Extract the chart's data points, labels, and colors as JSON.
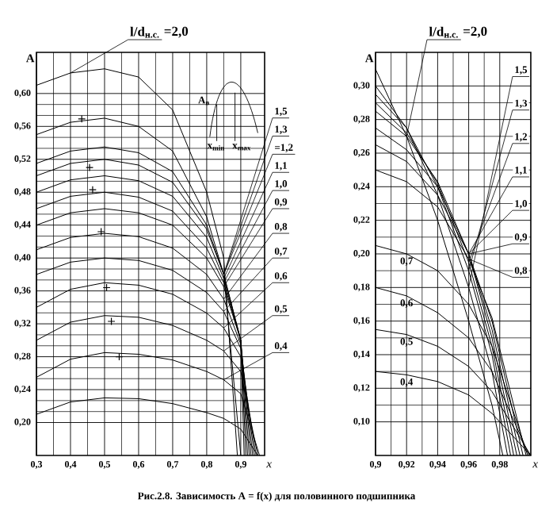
{
  "chart_data": [
    {
      "type": "line",
      "xlabel": "x",
      "ylabel": "A",
      "legend_title": "l/d$_{н.с.}$",
      "xlim": [
        0.3,
        0.97
      ],
      "ylim": [
        0.16,
        0.65
      ],
      "xticks": [
        {
          "value": 0.3,
          "label": "0,3"
        },
        {
          "value": 0.4,
          "label": "0,4"
        },
        {
          "value": 0.5,
          "label": "0,5"
        },
        {
          "value": 0.6,
          "label": "0,6"
        },
        {
          "value": 0.7,
          "label": "0,7"
        },
        {
          "value": 0.8,
          "label": "0,8"
        },
        {
          "value": 0.9,
          "label": "0,9"
        }
      ],
      "yticks": [
        {
          "value": 0.2,
          "label": "0,20"
        },
        {
          "value": 0.24,
          "label": "0,24"
        },
        {
          "value": 0.28,
          "label": "0,28"
        },
        {
          "value": 0.32,
          "label": "0,32"
        },
        {
          "value": 0.36,
          "label": "0,36"
        },
        {
          "value": 0.4,
          "label": "0,40"
        },
        {
          "value": 0.44,
          "label": "0,44"
        },
        {
          "value": 0.48,
          "label": "0,48"
        },
        {
          "value": 0.52,
          "label": "0,52"
        },
        {
          "value": 0.56,
          "label": "0,56"
        },
        {
          "value": 0.6,
          "label": "0,60"
        }
      ],
      "grid": true,
      "annotations": [
        "A$_{в}$",
        "x$_{min}$",
        "x$_{max}$"
      ],
      "series": [
        {
          "name": "=2,0",
          "color": "#000000",
          "x": [
            0.3,
            0.4,
            0.5,
            0.6,
            0.7,
            0.8,
            0.85,
            0.89
          ],
          "values": [
            0.61,
            0.625,
            0.63,
            0.62,
            0.58,
            0.48,
            0.4,
            0.16
          ]
        },
        {
          "name": "1,5",
          "color": "#000000",
          "x": [
            0.3,
            0.4,
            0.5,
            0.6,
            0.7,
            0.8,
            0.85,
            0.9
          ],
          "values": [
            0.55,
            0.565,
            0.57,
            0.56,
            0.53,
            0.45,
            0.38,
            0.16
          ]
        },
        {
          "name": "1,3",
          "color": "#000000",
          "x": [
            0.3,
            0.4,
            0.5,
            0.6,
            0.7,
            0.8,
            0.85,
            0.9,
            0.91
          ],
          "values": [
            0.515,
            0.53,
            0.535,
            0.528,
            0.505,
            0.44,
            0.38,
            0.3,
            0.16
          ]
        },
        {
          "name": "=1,2",
          "color": "#000000",
          "x": [
            0.3,
            0.4,
            0.5,
            0.6,
            0.7,
            0.8,
            0.85,
            0.9,
            0.915
          ],
          "values": [
            0.5,
            0.515,
            0.52,
            0.513,
            0.492,
            0.435,
            0.38,
            0.3,
            0.16
          ]
        },
        {
          "name": "1,1",
          "color": "#000000",
          "x": [
            0.3,
            0.4,
            0.5,
            0.6,
            0.7,
            0.8,
            0.85,
            0.9,
            0.92
          ],
          "values": [
            0.48,
            0.495,
            0.5,
            0.494,
            0.475,
            0.425,
            0.375,
            0.3,
            0.16
          ]
        },
        {
          "name": "1,0",
          "color": "#000000",
          "x": [
            0.3,
            0.4,
            0.5,
            0.6,
            0.7,
            0.8,
            0.85,
            0.9,
            0.925
          ],
          "values": [
            0.46,
            0.475,
            0.48,
            0.474,
            0.457,
            0.412,
            0.37,
            0.3,
            0.16
          ]
        },
        {
          "name": "0,9",
          "color": "#000000",
          "x": [
            0.3,
            0.4,
            0.5,
            0.6,
            0.7,
            0.8,
            0.85,
            0.9,
            0.93
          ],
          "values": [
            0.44,
            0.455,
            0.46,
            0.455,
            0.44,
            0.4,
            0.365,
            0.3,
            0.16
          ]
        },
        {
          "name": "0,8",
          "color": "#000000",
          "x": [
            0.3,
            0.4,
            0.5,
            0.6,
            0.7,
            0.8,
            0.85,
            0.9,
            0.935
          ],
          "values": [
            0.41,
            0.425,
            0.43,
            0.426,
            0.412,
            0.38,
            0.35,
            0.295,
            0.16
          ]
        },
        {
          "name": "0,7",
          "color": "#000000",
          "x": [
            0.3,
            0.4,
            0.5,
            0.6,
            0.7,
            0.8,
            0.85,
            0.9,
            0.94
          ],
          "values": [
            0.38,
            0.395,
            0.4,
            0.397,
            0.385,
            0.358,
            0.335,
            0.29,
            0.16
          ]
        },
        {
          "name": "0,6",
          "color": "#000000",
          "x": [
            0.3,
            0.4,
            0.5,
            0.6,
            0.7,
            0.8,
            0.85,
            0.9,
            0.945
          ],
          "values": [
            0.34,
            0.362,
            0.37,
            0.367,
            0.356,
            0.333,
            0.315,
            0.28,
            0.16
          ]
        },
        {
          "name": "0,5",
          "color": "#000000",
          "x": [
            0.3,
            0.4,
            0.5,
            0.6,
            0.7,
            0.8,
            0.85,
            0.9,
            0.95
          ],
          "values": [
            0.3,
            0.322,
            0.33,
            0.328,
            0.318,
            0.3,
            0.287,
            0.262,
            0.16
          ]
        },
        {
          "name": "0,4",
          "color": "#000000",
          "x": [
            0.3,
            0.4,
            0.5,
            0.6,
            0.7,
            0.8,
            0.85,
            0.9,
            0.955
          ],
          "values": [
            0.255,
            0.277,
            0.285,
            0.283,
            0.276,
            0.262,
            0.252,
            0.235,
            0.16
          ]
        },
        {
          "color": "#000000",
          "x": [
            0.3,
            0.4,
            0.5,
            0.6,
            0.7,
            0.8,
            0.85,
            0.9,
            0.95
          ],
          "values": [
            0.21,
            0.225,
            0.23,
            0.229,
            0.223,
            0.212,
            0.205,
            0.192,
            0.16
          ]
        },
        {
          "type": "scatter",
          "marker": "cross",
          "color": "#000000",
          "x": [
            0.433,
            0.456,
            0.465,
            0.49,
            0.506,
            0.52,
            0.543
          ],
          "values": [
            0.569,
            0.51,
            0.483,
            0.432,
            0.364,
            0.323,
            0.28
          ]
        }
      ]
    },
    {
      "type": "line",
      "xlabel": "x",
      "ylabel": "A",
      "legend_title": "l/d$_{н.с.}$",
      "xlim": [
        0.9,
        1.0
      ],
      "ylim": [
        0.08,
        0.32
      ],
      "xticks": [
        {
          "value": 0.9,
          "label": "0,9"
        },
        {
          "value": 0.92,
          "label": "0,92"
        },
        {
          "value": 0.94,
          "label": "0,94"
        },
        {
          "value": 0.96,
          "label": "0,96"
        },
        {
          "value": 0.98,
          "label": "0,98"
        }
      ],
      "yticks": [
        {
          "value": 0.1,
          "label": "0,10"
        },
        {
          "value": 0.12,
          "label": "0,12"
        },
        {
          "value": 0.14,
          "label": "0,14"
        },
        {
          "value": 0.16,
          "label": "0,16"
        },
        {
          "value": 0.18,
          "label": "0,18"
        },
        {
          "value": 0.2,
          "label": "0,20"
        },
        {
          "value": 0.22,
          "label": "0,22"
        },
        {
          "value": 0.24,
          "label": "0,24"
        },
        {
          "value": 0.26,
          "label": "0,26"
        },
        {
          "value": 0.28,
          "label": "0,28"
        },
        {
          "value": 0.3,
          "label": "0,30"
        }
      ],
      "grid": true,
      "annotations": [
        "Рис.2.8. Зависимость A = f(x) для половинного подшипника"
      ],
      "series": [
        {
          "name": "=2,0",
          "color": "#000000",
          "x": [
            0.9,
            0.92,
            0.94,
            0.96,
            0.975,
            0.982
          ],
          "values": [
            0.31,
            0.27,
            0.22,
            0.16,
            0.11,
            0.08
          ]
        },
        {
          "name": "1,5",
          "color": "#000000",
          "x": [
            0.9,
            0.92,
            0.94,
            0.96,
            0.975,
            0.985
          ],
          "values": [
            0.3,
            0.275,
            0.235,
            0.18,
            0.13,
            0.08
          ]
        },
        {
          "name": "1,3",
          "color": "#000000",
          "x": [
            0.9,
            0.92,
            0.94,
            0.96,
            0.975,
            0.987
          ],
          "values": [
            0.295,
            0.275,
            0.24,
            0.19,
            0.14,
            0.08
          ]
        },
        {
          "name": "1,2",
          "color": "#000000",
          "x": [
            0.9,
            0.92,
            0.94,
            0.96,
            0.975,
            0.989
          ],
          "values": [
            0.29,
            0.272,
            0.242,
            0.195,
            0.145,
            0.08
          ]
        },
        {
          "name": "1,1",
          "color": "#000000",
          "x": [
            0.9,
            0.92,
            0.94,
            0.96,
            0.975,
            0.991
          ],
          "values": [
            0.285,
            0.27,
            0.243,
            0.2,
            0.15,
            0.08
          ]
        },
        {
          "name": "1,0",
          "color": "#000000",
          "x": [
            0.9,
            0.92,
            0.94,
            0.96,
            0.975,
            0.993
          ],
          "values": [
            0.275,
            0.262,
            0.24,
            0.2,
            0.155,
            0.08
          ]
        },
        {
          "name": "0,9",
          "color": "#000000",
          "x": [
            0.9,
            0.92,
            0.94,
            0.96,
            0.975,
            0.995
          ],
          "values": [
            0.265,
            0.255,
            0.235,
            0.2,
            0.16,
            0.08
          ]
        },
        {
          "name": "0,8",
          "color": "#000000",
          "x": [
            0.9,
            0.92,
            0.94,
            0.96,
            0.975,
            0.997
          ],
          "values": [
            0.25,
            0.243,
            0.228,
            0.197,
            0.162,
            0.08
          ]
        },
        {
          "name": "0,7",
          "color": "#000000",
          "x": [
            0.9,
            0.92,
            0.94,
            0.96,
            0.975,
            0.998
          ],
          "values": [
            0.205,
            0.2,
            0.19,
            0.17,
            0.145,
            0.08
          ]
        },
        {
          "name": "0,6",
          "color": "#000000",
          "x": [
            0.9,
            0.92,
            0.94,
            0.96,
            0.975,
            0.999
          ],
          "values": [
            0.18,
            0.175,
            0.165,
            0.15,
            0.13,
            0.08
          ]
        },
        {
          "name": "0,5",
          "color": "#000000",
          "x": [
            0.9,
            0.92,
            0.94,
            0.96,
            0.975,
            1.0
          ],
          "values": [
            0.155,
            0.152,
            0.145,
            0.133,
            0.118,
            0.08
          ]
        },
        {
          "name": "0,4",
          "color": "#000000",
          "x": [
            0.9,
            0.92,
            0.94,
            0.96,
            0.975,
            1.0
          ],
          "values": [
            0.13,
            0.128,
            0.124,
            0.116,
            0.105,
            0.08
          ]
        }
      ]
    }
  ]
}
